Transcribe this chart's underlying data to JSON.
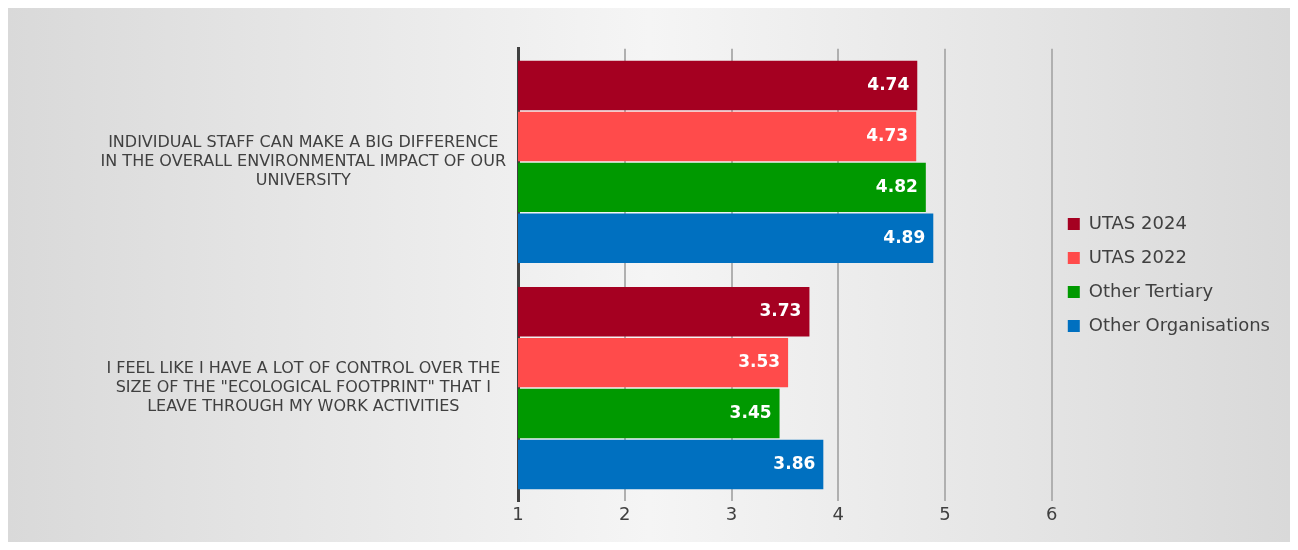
{
  "chart_data": {
    "type": "bar",
    "orientation": "horizontal",
    "categories": [
      "INDIVIDUAL STAFF CAN MAKE A BIG DIFFERENCE IN THE OVERALL ENVIRONMENTAL IMPACT OF OUR UNIVERSITY",
      "I FEEL LIKE I HAVE A LOT OF CONTROL OVER THE SIZE OF THE \"ECOLOGICAL FOOTPRINT\" THAT I LEAVE THROUGH MY WORK ACTIVITIES"
    ],
    "series": [
      {
        "name": "UTAS 2024",
        "color": "#a50021",
        "values": [
          4.74,
          3.73
        ]
      },
      {
        "name": "UTAS 2022",
        "color": "#ff4b4b",
        "values": [
          4.73,
          3.53
        ]
      },
      {
        "name": "Other Tertiary",
        "color": "#009900",
        "values": [
          4.82,
          3.45
        ]
      },
      {
        "name": "Other Organisations",
        "color": "#0070c0",
        "values": [
          4.89,
          3.86
        ]
      }
    ],
    "xlim": [
      1,
      6
    ],
    "xticks": [
      1,
      2,
      3,
      4,
      5,
      6
    ],
    "grid": "x",
    "legend": "right",
    "data_labels": true
  }
}
